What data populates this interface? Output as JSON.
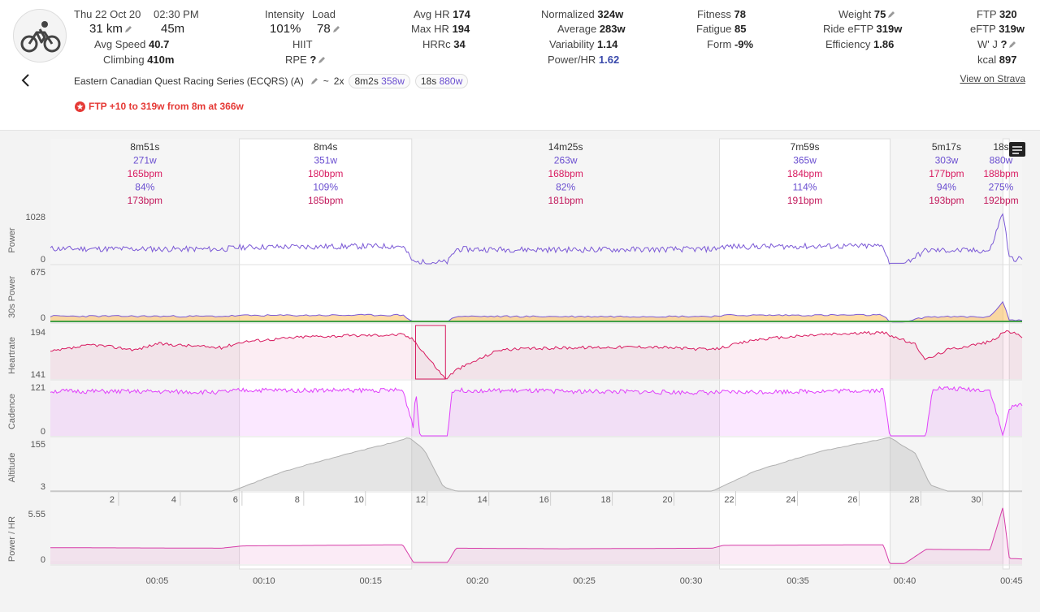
{
  "header": {
    "date": "Thu 22 Oct 20",
    "time": "02:30 PM",
    "distance": "31 km",
    "duration": "45m",
    "avg_speed_label": "Avg Speed",
    "avg_speed": "40.7",
    "climbing_label": "Climbing",
    "climbing": "410m",
    "intensity_label": "Intensity",
    "intensity": "101%",
    "load_label": "Load",
    "load": "78",
    "hiit": "HIIT",
    "rpe_label": "RPE",
    "rpe": "?",
    "avghr_label": "Avg HR",
    "avghr": "174",
    "maxhr_label": "Max HR",
    "maxhr": "194",
    "hrrc_label": "HRRc",
    "hrrc": "34",
    "normalized_label": "Normalized",
    "normalized": "324w",
    "average_label": "Average",
    "average": "283w",
    "variability_label": "Variability",
    "variability": "1.14",
    "powerhr_label": "Power/HR",
    "powerhr": "1.62",
    "fitness_label": "Fitness",
    "fitness": "78",
    "fatigue_label": "Fatigue",
    "fatigue": "85",
    "form_label": "Form",
    "form": "-9%",
    "weight_label": "Weight",
    "weight": "75",
    "ride_eftp_label": "Ride eFTP",
    "ride_eftp": "319w",
    "efficiency_label": "Efficiency",
    "efficiency": "1.86",
    "ftp_label": "FTP",
    "ftp": "320",
    "eftp_label": "eFTP",
    "eftp": "319w",
    "wj_label": "W' J",
    "wj": "?",
    "kcal_label": "kcal",
    "kcal": "897",
    "activity_name": "Eastern Canadian Quest Racing Series (ECQRS) (A)",
    "tilde": "~",
    "pill1_prefix": "2x",
    "pill1_time": "8m2s",
    "pill1_power": "358w",
    "pill2_time": "18s",
    "pill2_power": "880w",
    "strava_link": "View on Strava",
    "ftp_note": "FTP +10 to 319w from 8m at 366w",
    "colors": {
      "power": "#7b59d6",
      "hr": "#d81b60",
      "cadence": "#e040fb",
      "altitude": "#bdbdbd",
      "ftp_note": "#e53935"
    }
  },
  "intervals": [
    {
      "duration": "8m51s",
      "power": "271w",
      "hr": "165bpm",
      "pct": "84%",
      "maxhr": "173bpm"
    },
    {
      "duration": "8m4s",
      "power": "351w",
      "hr": "180bpm",
      "pct": "109%",
      "maxhr": "185bpm"
    },
    {
      "duration": "14m25s",
      "power": "263w",
      "hr": "168bpm",
      "pct": "82%",
      "maxhr": "181bpm"
    },
    {
      "duration": "7m59s",
      "power": "365w",
      "hr": "184bpm",
      "pct": "114%",
      "maxhr": "191bpm"
    },
    {
      "duration": "5m17s",
      "power": "303w",
      "hr": "177bpm",
      "pct": "94%",
      "maxhr": "193bpm"
    },
    {
      "duration": "18s",
      "power": "880w",
      "hr": "188bpm",
      "pct": "275%",
      "maxhr": "192bpm"
    }
  ],
  "chart_data": {
    "type": "line",
    "x_unit": "time",
    "xlim_minutes": [
      0,
      45.5
    ],
    "time_ticks": [
      "00:05",
      "00:10",
      "00:15",
      "00:20",
      "00:25",
      "00:30",
      "00:35",
      "00:40",
      "00:45"
    ],
    "distance_ticks": [
      "2",
      "4",
      "6",
      "8",
      "10",
      "12",
      "14",
      "16",
      "18",
      "20",
      "22",
      "24",
      "26",
      "28",
      "30"
    ],
    "panels": [
      {
        "name": "power",
        "label": "Power",
        "ymax": "1028",
        "ymin": "0",
        "color": "#7b59d6"
      },
      {
        "name": "power30",
        "label": "30s Power",
        "ymax": "675",
        "ymin": "0",
        "color": "#7b59d6"
      },
      {
        "name": "heartrate",
        "label": "Heartrate",
        "ymax": "194",
        "ymin": "141",
        "color": "#d81b60"
      },
      {
        "name": "cadence",
        "label": "Cadence",
        "ymax": "121",
        "ymin": "0",
        "color": "#e040fb"
      },
      {
        "name": "altitude",
        "label": "Altitude",
        "ymax": "155",
        "ymin": "3",
        "color": "#bdbdbd"
      },
      {
        "name": "powerhr",
        "label": "Power / HR",
        "ymax": "5.55",
        "ymin": "0",
        "color": "#d63ca8"
      }
    ],
    "interval_bounds_minutes": [
      [
        0,
        8.85
      ],
      [
        8.85,
        16.92
      ],
      [
        16.92,
        31.33
      ],
      [
        31.33,
        39.32
      ],
      [
        39.32,
        44.6
      ],
      [
        44.6,
        44.9
      ]
    ],
    "power_keypoints": [
      [
        0,
        290
      ],
      [
        8,
        280
      ],
      [
        9,
        320
      ],
      [
        16.5,
        340
      ],
      [
        17,
        30
      ],
      [
        18.6,
        30
      ],
      [
        19,
        280
      ],
      [
        24,
        270
      ],
      [
        31,
        280
      ],
      [
        31.5,
        330
      ],
      [
        39,
        340
      ],
      [
        39.3,
        10
      ],
      [
        40,
        10
      ],
      [
        41,
        260
      ],
      [
        44,
        250
      ],
      [
        44.6,
        1000
      ],
      [
        44.9,
        100
      ],
      [
        45.5,
        90
      ]
    ],
    "hr_keypoints": [
      [
        0,
        168
      ],
      [
        2,
        175
      ],
      [
        4,
        170
      ],
      [
        5,
        176
      ],
      [
        8,
        172
      ],
      [
        9,
        178
      ],
      [
        12,
        183
      ],
      [
        16.5,
        185
      ],
      [
        17,
        180
      ],
      [
        18.5,
        141
      ],
      [
        19,
        150
      ],
      [
        21,
        170
      ],
      [
        24,
        172
      ],
      [
        28,
        173
      ],
      [
        31,
        170
      ],
      [
        33,
        180
      ],
      [
        36,
        185
      ],
      [
        39,
        187
      ],
      [
        40.5,
        175
      ],
      [
        41,
        160
      ],
      [
        42,
        170
      ],
      [
        44,
        178
      ],
      [
        44.8,
        189
      ],
      [
        45.5,
        183
      ]
    ],
    "cadence_keypoints": [
      [
        0,
        98
      ],
      [
        8,
        96
      ],
      [
        9,
        100
      ],
      [
        16.5,
        100
      ],
      [
        17,
        20
      ],
      [
        17.1,
        105
      ],
      [
        17.3,
        0
      ],
      [
        18.6,
        0
      ],
      [
        18.8,
        100
      ],
      [
        31,
        95
      ],
      [
        39,
        100
      ],
      [
        39.3,
        0
      ],
      [
        41,
        0
      ],
      [
        41.3,
        105
      ],
      [
        44,
        100
      ],
      [
        44.6,
        0
      ],
      [
        44.9,
        60
      ],
      [
        45.5,
        70
      ]
    ],
    "altitude_keypoints": [
      [
        0,
        3
      ],
      [
        8.5,
        3
      ],
      [
        11,
        60
      ],
      [
        14,
        110
      ],
      [
        16,
        140
      ],
      [
        16.8,
        155
      ],
      [
        17.5,
        120
      ],
      [
        18.4,
        15
      ],
      [
        19,
        3
      ],
      [
        31,
        3
      ],
      [
        33,
        60
      ],
      [
        36,
        115
      ],
      [
        38.5,
        145
      ],
      [
        39.3,
        155
      ],
      [
        40.5,
        110
      ],
      [
        41.2,
        20
      ],
      [
        42,
        3
      ],
      [
        44.6,
        3
      ],
      [
        45.5,
        3
      ]
    ]
  }
}
